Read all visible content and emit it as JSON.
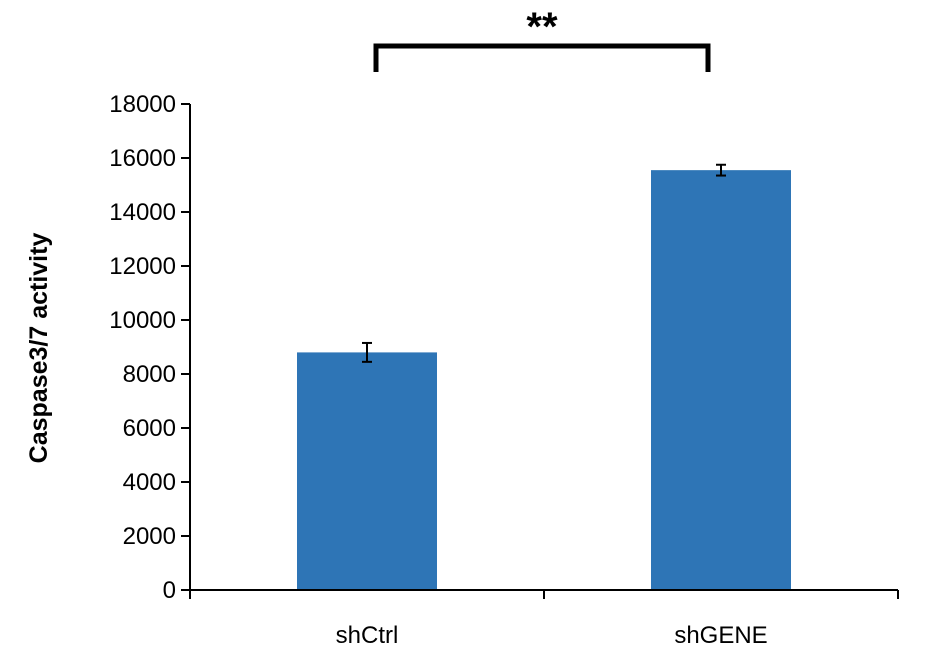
{
  "chart_data": {
    "type": "bar",
    "title": "",
    "xlabel": "",
    "ylabel": "Caspase3/7 activity",
    "categories": [
      "shCtrl",
      "shGENE"
    ],
    "values": [
      8800,
      15550
    ],
    "errors": [
      350,
      200
    ],
    "ylim": [
      0,
      18000
    ],
    "yticks": [
      0,
      2000,
      4000,
      6000,
      8000,
      10000,
      12000,
      14000,
      16000,
      18000
    ],
    "grid": false,
    "bar_color": "#2E75B6",
    "significance": {
      "label": "**",
      "between": [
        "shCtrl",
        "shGENE"
      ]
    }
  }
}
